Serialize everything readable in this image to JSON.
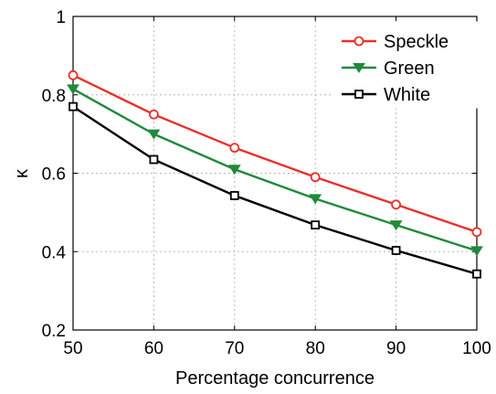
{
  "chart_data": {
    "type": "line",
    "title": "",
    "xlabel": "Percentage concurrence",
    "ylabel": "κ",
    "xlim": [
      50,
      100
    ],
    "ylim": [
      0.2,
      1.0
    ],
    "x_ticks": [
      50,
      60,
      70,
      80,
      90,
      100
    ],
    "y_ticks": [
      0.2,
      0.4,
      0.6,
      0.8,
      1.0
    ],
    "x_tick_labels": [
      "50",
      "60",
      "70",
      "80",
      "90",
      "100"
    ],
    "y_tick_labels": [
      "0.2",
      "0.4",
      "0.6",
      "0.8",
      "1"
    ],
    "grid": true,
    "legend_position": "top-right",
    "x": [
      50,
      60,
      70,
      80,
      90,
      100
    ],
    "series": [
      {
        "name": "Speckle",
        "color": "#e8312a",
        "marker": "circle",
        "values": [
          0.85,
          0.75,
          0.665,
          0.59,
          0.52,
          0.45
        ]
      },
      {
        "name": "Green",
        "color": "#1f8a3a",
        "marker": "triangle-down",
        "values": [
          0.815,
          0.7,
          0.61,
          0.535,
          0.468,
          0.402
        ]
      },
      {
        "name": "White",
        "color": "#000000",
        "marker": "square",
        "values": [
          0.77,
          0.635,
          0.543,
          0.468,
          0.403,
          0.343
        ]
      }
    ]
  }
}
